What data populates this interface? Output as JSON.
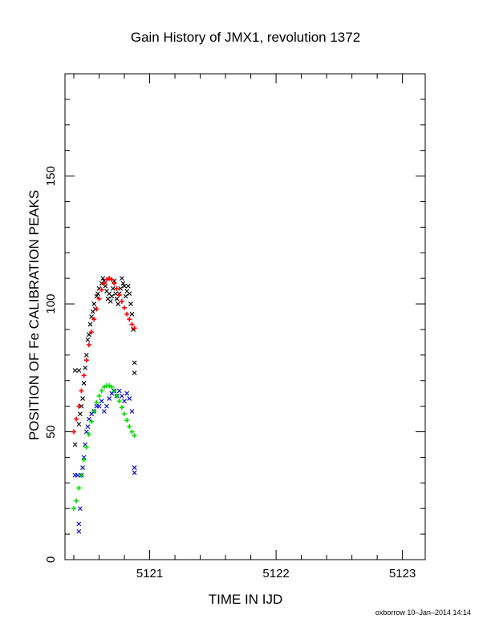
{
  "chart_data": {
    "type": "scatter",
    "title": "Gain History of JMX1, revolution 1372",
    "xlabel": "TIME IN IJD",
    "ylabel": "POSITION OF Fe CALIBRATION PEAKS",
    "xlim": [
      5120.33,
      5123.18
    ],
    "ylim": [
      0,
      190
    ],
    "x_ticks": [
      5121,
      5122,
      5123
    ],
    "x_tick_labels": [
      "5121",
      "5122",
      "5123"
    ],
    "y_ticks": [
      0,
      50,
      100,
      150
    ],
    "y_tick_labels": [
      "0",
      "50",
      "100",
      "150"
    ],
    "grid": false,
    "legend": "none",
    "series": [
      {
        "marker": "x",
        "color": "#000000",
        "points": [
          [
            5120.41,
            74
          ],
          [
            5120.41,
            45
          ],
          [
            5120.44,
            74
          ],
          [
            5120.44,
            53
          ],
          [
            5120.45,
            57
          ],
          [
            5120.46,
            60
          ],
          [
            5120.47,
            63
          ],
          [
            5120.48,
            69
          ],
          [
            5120.49,
            75
          ],
          [
            5120.5,
            80
          ],
          [
            5120.51,
            86
          ],
          [
            5120.52,
            88
          ],
          [
            5120.53,
            92
          ],
          [
            5120.54,
            95
          ],
          [
            5120.55,
            97
          ],
          [
            5120.56,
            100
          ],
          [
            5120.57,
            98
          ],
          [
            5120.58,
            103
          ],
          [
            5120.59,
            104
          ],
          [
            5120.6,
            106
          ],
          [
            5120.62,
            108
          ],
          [
            5120.63,
            110
          ],
          [
            5120.64,
            109
          ],
          [
            5120.65,
            107
          ],
          [
            5120.66,
            105
          ],
          [
            5120.67,
            102
          ],
          [
            5120.68,
            104
          ],
          [
            5120.69,
            101
          ],
          [
            5120.7,
            103
          ],
          [
            5120.71,
            106
          ],
          [
            5120.72,
            109
          ],
          [
            5120.73,
            104
          ],
          [
            5120.74,
            102
          ],
          [
            5120.75,
            100
          ],
          [
            5120.76,
            104
          ],
          [
            5120.77,
            106
          ],
          [
            5120.78,
            110
          ],
          [
            5120.79,
            108
          ],
          [
            5120.8,
            107
          ],
          [
            5120.81,
            103
          ],
          [
            5120.82,
            105
          ],
          [
            5120.83,
            107
          ],
          [
            5120.84,
            104
          ],
          [
            5120.85,
            100
          ],
          [
            5120.86,
            96
          ],
          [
            5120.87,
            90
          ],
          [
            5120.88,
            77
          ],
          [
            5120.88,
            73
          ]
        ]
      },
      {
        "marker": "+",
        "color": "#ff0000",
        "points": [
          [
            5120.4,
            50
          ],
          [
            5120.42,
            55
          ],
          [
            5120.44,
            60
          ],
          [
            5120.46,
            66
          ],
          [
            5120.48,
            72
          ],
          [
            5120.5,
            78
          ],
          [
            5120.52,
            84
          ],
          [
            5120.54,
            89
          ],
          [
            5120.56,
            94
          ],
          [
            5120.58,
            98
          ],
          [
            5120.6,
            102
          ],
          [
            5120.62,
            105.5
          ],
          [
            5120.64,
            108
          ],
          [
            5120.66,
            109.5
          ],
          [
            5120.68,
            110
          ],
          [
            5120.7,
            109.5
          ],
          [
            5120.72,
            108
          ],
          [
            5120.74,
            106
          ],
          [
            5120.76,
            103.5
          ],
          [
            5120.78,
            101
          ],
          [
            5120.8,
            98.5
          ],
          [
            5120.82,
            96
          ],
          [
            5120.84,
            94
          ],
          [
            5120.86,
            92
          ],
          [
            5120.88,
            90.5
          ]
        ]
      },
      {
        "marker": "x",
        "color": "#0000cc",
        "points": [
          [
            5120.41,
            33
          ],
          [
            5120.43,
            33
          ],
          [
            5120.44,
            14
          ],
          [
            5120.44,
            11
          ],
          [
            5120.45,
            20
          ],
          [
            5120.46,
            33
          ],
          [
            5120.47,
            36
          ],
          [
            5120.48,
            40
          ],
          [
            5120.49,
            45
          ],
          [
            5120.5,
            50
          ],
          [
            5120.51,
            52
          ],
          [
            5120.52,
            55
          ],
          [
            5120.54,
            57
          ],
          [
            5120.56,
            58
          ],
          [
            5120.58,
            60
          ],
          [
            5120.6,
            60
          ],
          [
            5120.62,
            62
          ],
          [
            5120.64,
            58
          ],
          [
            5120.66,
            60
          ],
          [
            5120.68,
            63
          ],
          [
            5120.7,
            65
          ],
          [
            5120.72,
            66
          ],
          [
            5120.74,
            64
          ],
          [
            5120.76,
            66
          ],
          [
            5120.78,
            64
          ],
          [
            5120.8,
            62
          ],
          [
            5120.82,
            65
          ],
          [
            5120.84,
            63
          ],
          [
            5120.86,
            58
          ],
          [
            5120.88,
            36
          ],
          [
            5120.88,
            34
          ]
        ]
      },
      {
        "marker": "+",
        "color": "#00dd00",
        "points": [
          [
            5120.4,
            20
          ],
          [
            5120.42,
            23
          ],
          [
            5120.44,
            28
          ],
          [
            5120.46,
            33
          ],
          [
            5120.48,
            39
          ],
          [
            5120.5,
            44
          ],
          [
            5120.52,
            49
          ],
          [
            5120.54,
            54
          ],
          [
            5120.56,
            58
          ],
          [
            5120.58,
            61.5
          ],
          [
            5120.6,
            64
          ],
          [
            5120.62,
            66
          ],
          [
            5120.64,
            67.5
          ],
          [
            5120.66,
            68
          ],
          [
            5120.68,
            68
          ],
          [
            5120.7,
            67.5
          ],
          [
            5120.72,
            66
          ],
          [
            5120.74,
            64
          ],
          [
            5120.76,
            62
          ],
          [
            5120.78,
            59.5
          ],
          [
            5120.8,
            57
          ],
          [
            5120.82,
            54.5
          ],
          [
            5120.84,
            52
          ],
          [
            5120.86,
            50
          ],
          [
            5120.88,
            48.5
          ]
        ]
      }
    ]
  },
  "footer": "oxborrow 10–Jan–2014 14:14"
}
